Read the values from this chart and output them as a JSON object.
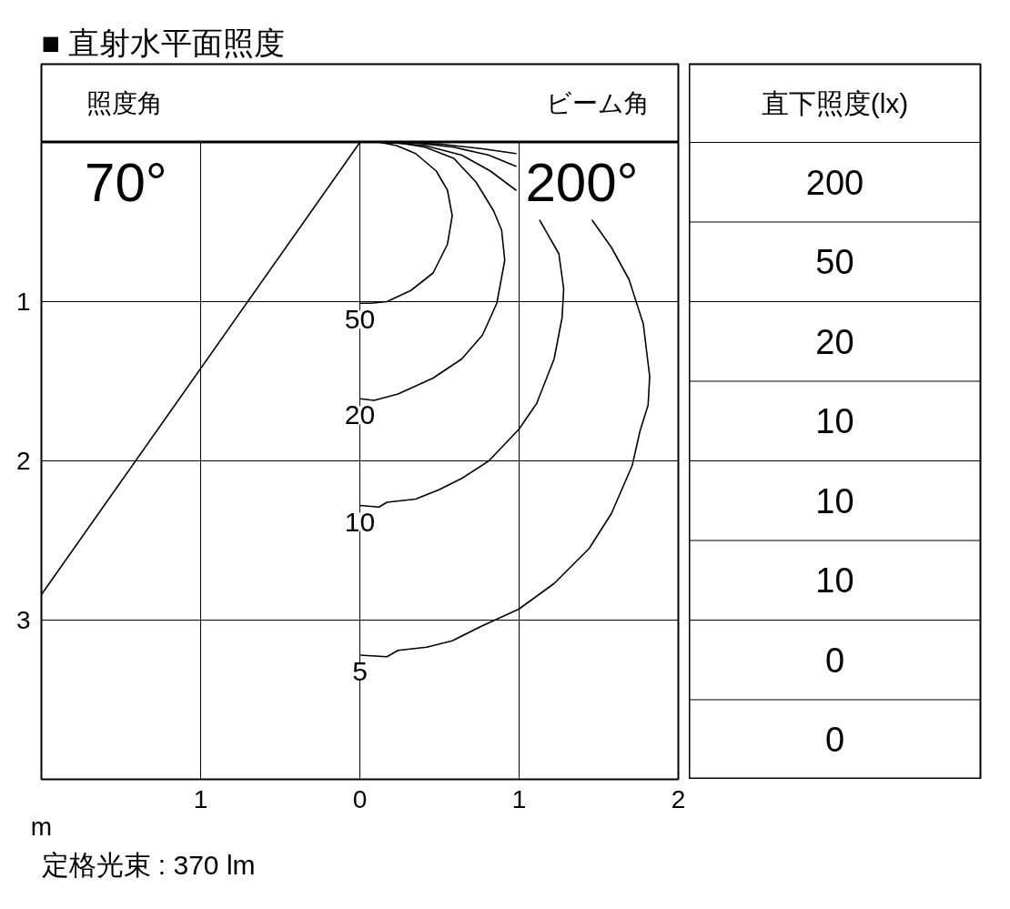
{
  "chart_data": [
    {
      "type": "line",
      "title": "■ 直射水平面照度",
      "xlabel": "m",
      "xlim": [
        -2,
        2
      ],
      "ylim": [
        4,
        0
      ],
      "xticks": [
        {
          "value": -1,
          "label": "1"
        },
        0,
        1,
        2
      ],
      "yticks": [
        1,
        2,
        3
      ],
      "grid": true,
      "series": [
        {
          "color": "#000000",
          "x": [
            0,
            -2
          ],
          "values": [
            0,
            2.84
          ]
        },
        {
          "color": "#000000",
          "x": [
            0.14,
            0.23,
            0.5,
            0.77,
            0.98
          ],
          "values": [
            0,
            0,
            0.01,
            0.04,
            0.07
          ]
        },
        {
          "name": "50",
          "color": "#000000",
          "x": [
            0,
            0.07,
            0.17,
            0.32,
            0.46,
            0.55,
            0.58,
            0.55,
            0.48,
            0.35,
            0.23,
            0.13
          ],
          "values": [
            1.01,
            1.01,
            1.0,
            0.93,
            0.82,
            0.64,
            0.46,
            0.3,
            0.18,
            0.07,
            0.02,
            0
          ]
        },
        {
          "name": "20",
          "color": "#000000",
          "x": [
            0,
            0.09,
            0.24,
            0.46,
            0.64,
            0.77,
            0.86,
            0.91,
            0.89,
            0.84,
            0.73,
            0.59,
            0.41,
            0.23,
            0.14
          ],
          "values": [
            1.61,
            1.62,
            1.58,
            1.48,
            1.36,
            1.21,
            1.01,
            0.74,
            0.55,
            0.43,
            0.25,
            0.1,
            0.03,
            0,
            0
          ]
        },
        {
          "name": "10",
          "color": "#000000",
          "x": [
            0,
            0.12,
            0.17,
            0.35,
            0.5,
            0.64,
            0.81,
            1.0,
            1.11,
            1.22,
            1.27,
            1.28,
            1.25,
            1.13,
            1.05,
            0.98,
            0.82,
            0.64,
            0.41,
            0.17
          ],
          "values": [
            2.28,
            2.29,
            2.26,
            2.24,
            2.18,
            2.11,
            2.0,
            1.8,
            1.64,
            1.36,
            1.1,
            0.92,
            0.7,
            0.49,
            null,
            0.3,
            0.18,
            0.08,
            0.02,
            0
          ]
        },
        {
          "name": "5",
          "color": "#000000",
          "x": [
            0,
            0.17,
            0.24,
            0.42,
            0.58,
            0.76,
            1.0,
            1.22,
            1.44,
            1.58,
            1.71,
            1.76,
            1.81,
            1.82,
            1.78,
            1.69,
            1.58,
            1.46,
            1.2,
            0.98,
            0.81,
            0.59,
            0.32,
            0.14
          ],
          "values": [
            3.22,
            3.23,
            3.19,
            3.17,
            3.13,
            3.04,
            2.93,
            2.77,
            2.55,
            2.33,
            2.03,
            1.81,
            1.65,
            1.47,
            1.14,
            0.86,
            0.66,
            0.49,
            null,
            0.15,
            0.08,
            0.03,
            0,
            0
          ]
        }
      ],
      "annotations": [
        "照度角",
        "70°",
        "ビーム角",
        "200°",
        "定格光束 : 370 lm"
      ]
    },
    {
      "type": "other",
      "title": "直下照度(lx)",
      "values": [
        200,
        50,
        20,
        10,
        10,
        10,
        0,
        0
      ],
      "data_labels": true
    }
  ]
}
